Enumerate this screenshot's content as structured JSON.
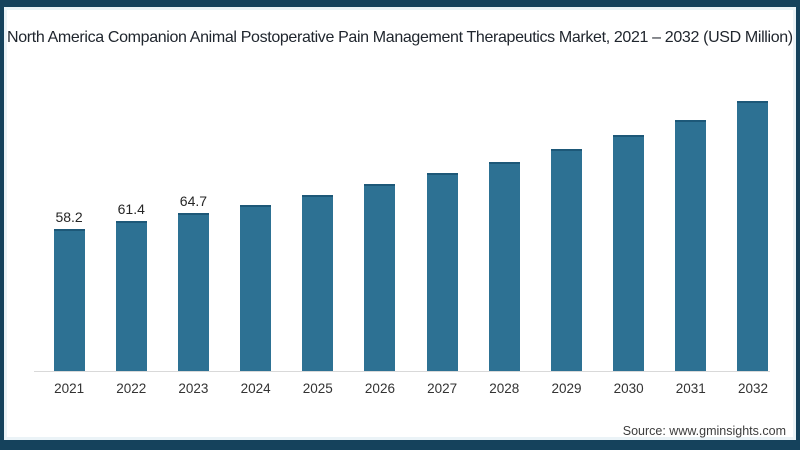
{
  "title": "North America Companion Animal Postoperative Pain Management Therapeutics Market, 2021 – 2032 (USD Million)",
  "source": {
    "text": "Source: www.gminsights.com"
  },
  "colors": {
    "frame_border": "#15425c",
    "bar_fill": "#2d7193",
    "bar_top_edge": "#1d5878",
    "axis_line": "#d9d9d9",
    "title_text": "#20262e",
    "label_text": "#262626"
  },
  "chart_data": {
    "type": "bar",
    "title": "North America Companion Animal Postoperative Pain Management Therapeutics Market, 2021 – 2032 (USD Million)",
    "categories": [
      "2021",
      "2022",
      "2023",
      "2024",
      "2025",
      "2026",
      "2027",
      "2028",
      "2029",
      "2030",
      "2031",
      "2032"
    ],
    "values": [
      58.2,
      61.4,
      64.7,
      68.2,
      72.3,
      76.8,
      81.3,
      85.8,
      90.8,
      96.8,
      103.0,
      110.7
    ],
    "bar_labels": [
      "58.2",
      "61.4",
      "64.7",
      "",
      "",
      "",
      "",
      "",
      "",
      "",
      "",
      ""
    ],
    "xlabel": "",
    "ylabel": "",
    "unit": "USD Million",
    "ylim": [
      0,
      120
    ],
    "grid": false,
    "legend": false,
    "bar_color": "#2d7193",
    "bar_top_edge_color": "#1d5878",
    "axis_line_color": "#d9d9d9",
    "note": "Only the first three bars carry data labels in the source image; remaining values estimated from bar heights."
  }
}
